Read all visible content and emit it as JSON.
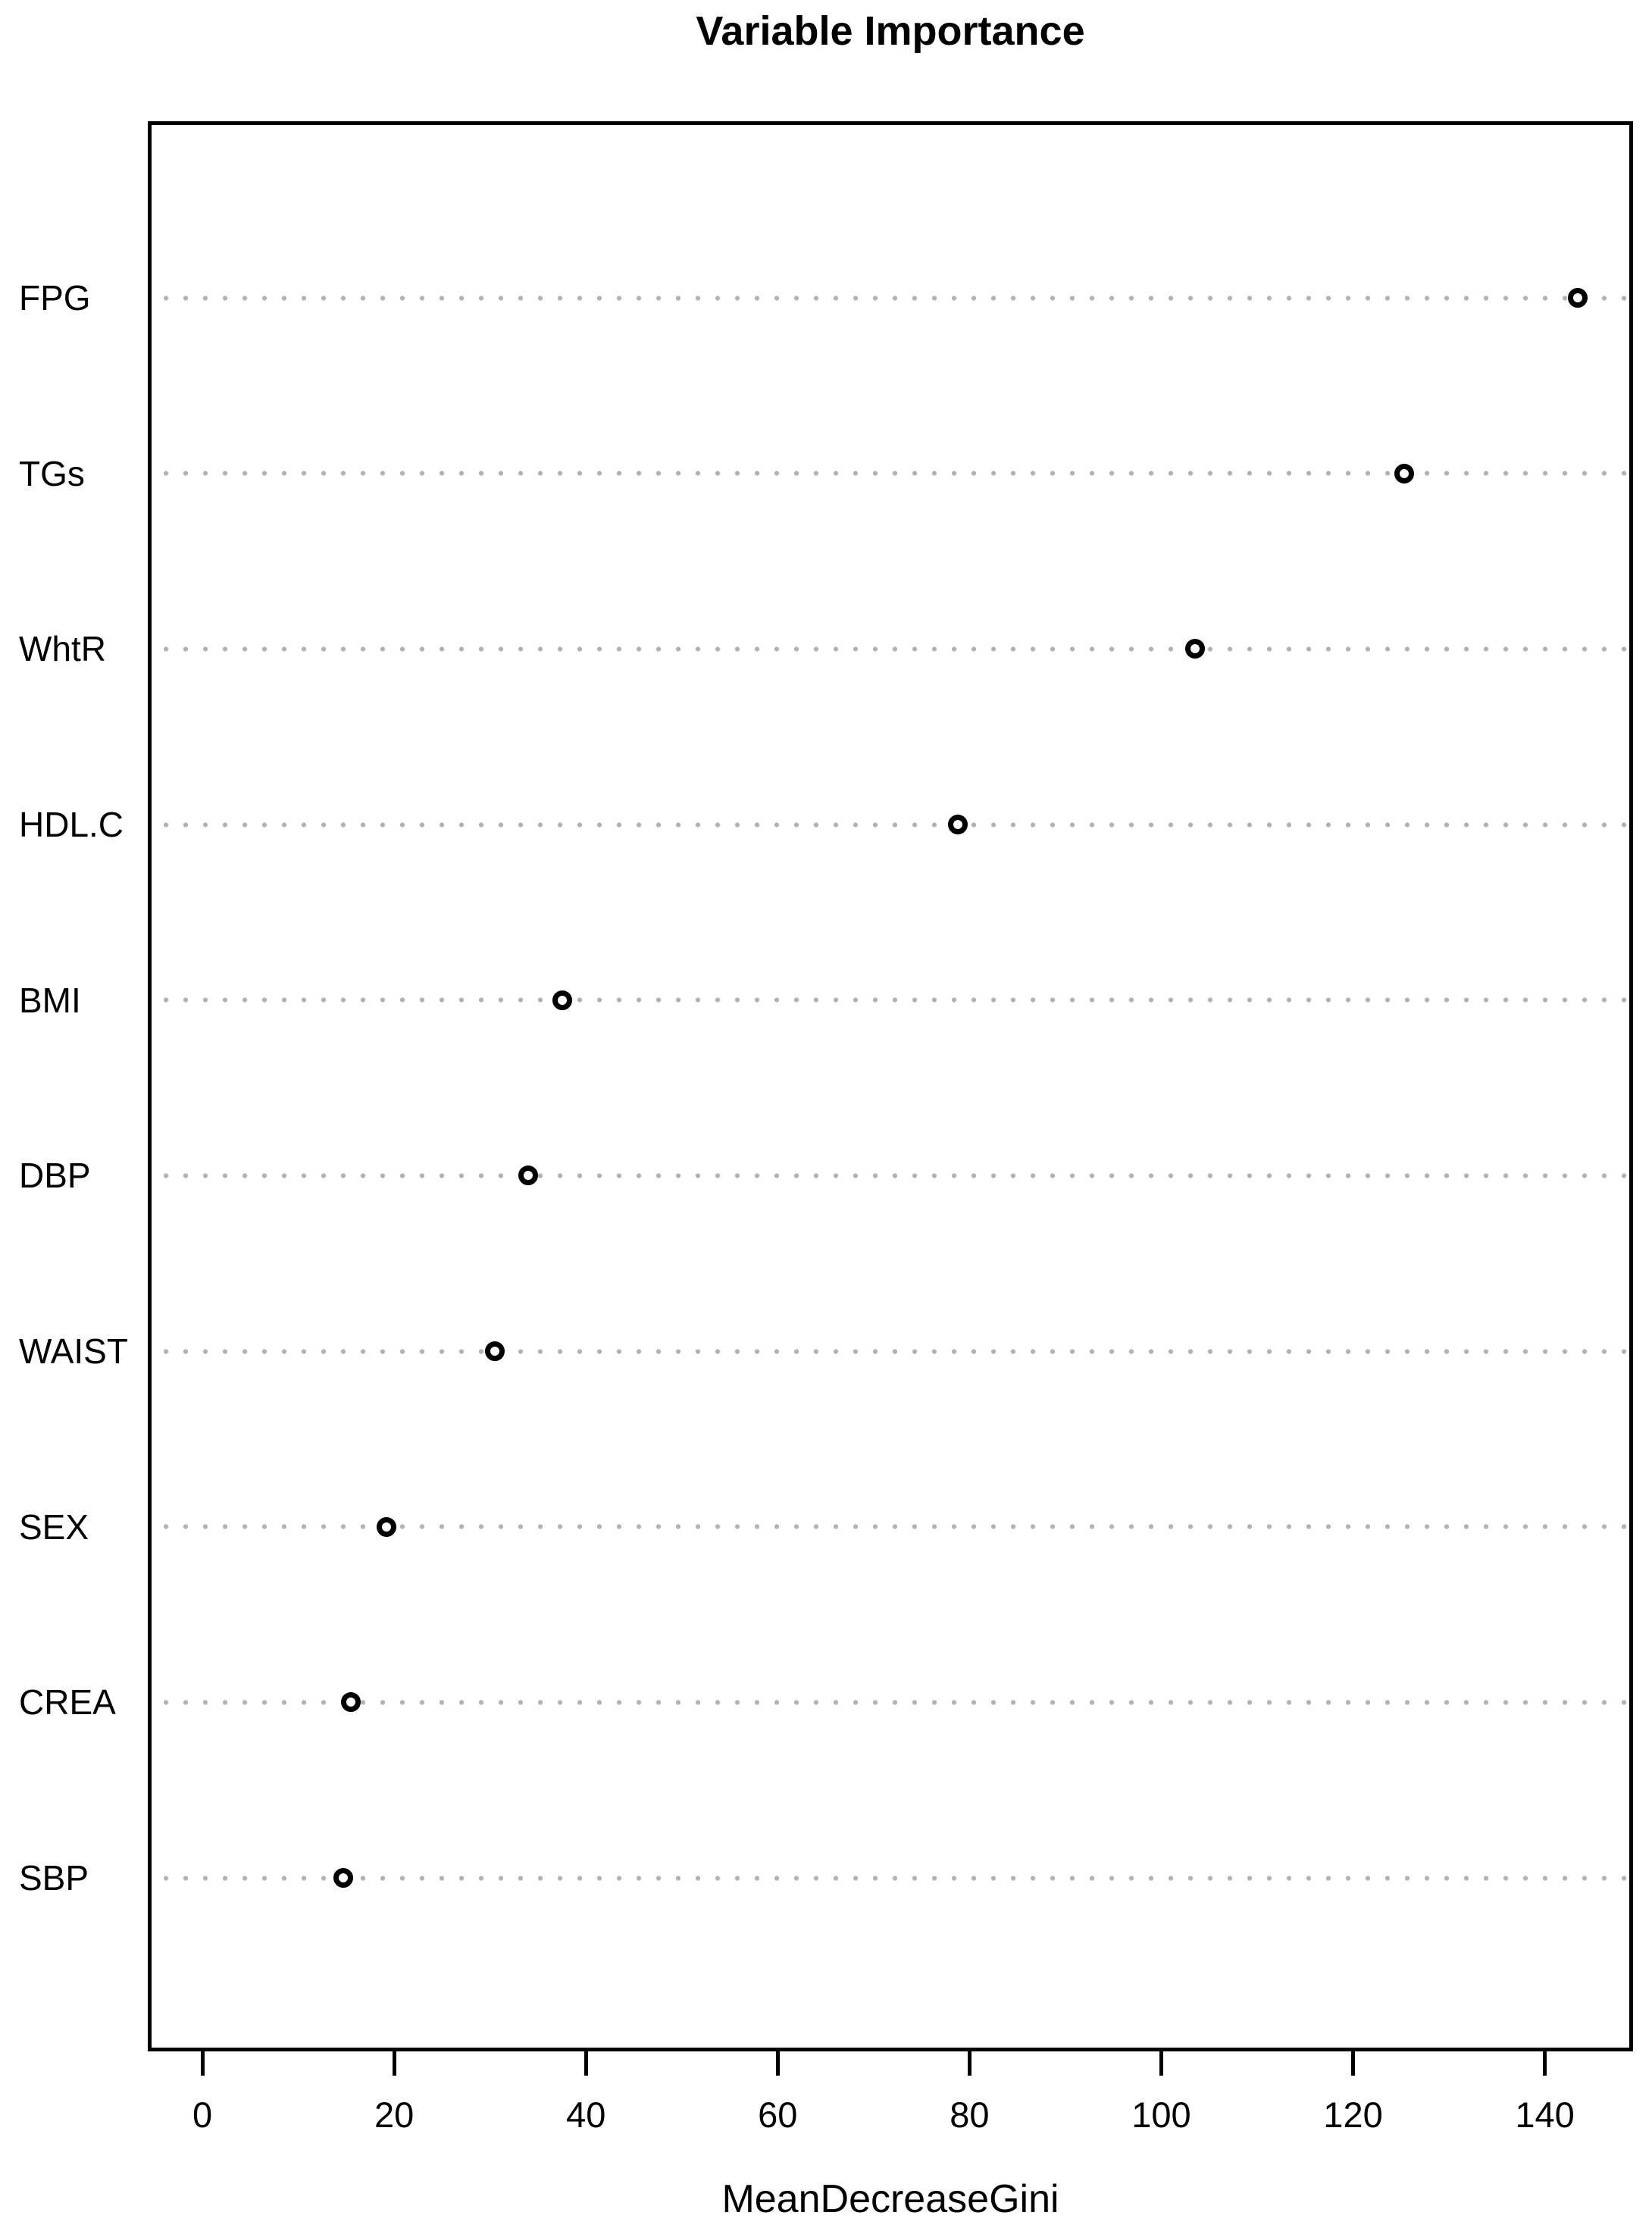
{
  "page": {
    "title": "Variable Importance"
  },
  "chart_data": {
    "type": "scatter",
    "subtype": "dotchart",
    "title": "Variable Importance",
    "xlabel": "MeanDecreaseGini",
    "ylabel": "",
    "categories": [
      "FPG",
      "TGs",
      "WhtR",
      "HDL.C",
      "BMI",
      "DBP",
      "WAIST",
      "SEX",
      "CREA",
      "SBP"
    ],
    "values": [
      143.4,
      125.3,
      103.5,
      78.8,
      37.5,
      34.0,
      30.5,
      19.2,
      15.5,
      14.7
    ],
    "xticks": [
      0,
      20,
      40,
      60,
      80,
      100,
      120,
      140
    ],
    "xlim": [
      -5.7,
      149.2
    ],
    "grid": "horizontal dotted line per category",
    "legend": "none",
    "point_style": "open circle",
    "colors": {
      "point_stroke": "#000000",
      "grid_dots": "#b3b3b3",
      "axis": "#000000",
      "text": "#000000",
      "background": "#ffffff"
    }
  }
}
